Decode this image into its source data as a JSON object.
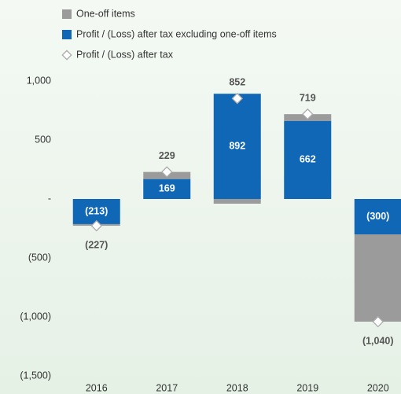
{
  "chart_data": {
    "type": "bar",
    "stacked": true,
    "categories": [
      "2016",
      "2017",
      "2018",
      "2019",
      "2020"
    ],
    "series": [
      {
        "name": "One-off items",
        "color": "#9b9b9b",
        "values": [
          -14,
          60,
          -40,
          57,
          -740
        ]
      },
      {
        "name": "Profit / (Loss) after tax excluding one-off items",
        "color": "#0f67b6",
        "values": [
          -213,
          169,
          892,
          662,
          -300
        ],
        "value_labels": [
          "(213)",
          "169",
          "892",
          "662",
          "(300)"
        ]
      },
      {
        "name": "Profit / (Loss) after tax",
        "type": "marker",
        "color": "#ffffff",
        "values": [
          -227,
          229,
          852,
          719,
          -1040
        ],
        "value_labels": [
          "(227)",
          "229",
          "852",
          "719",
          "(1,040)"
        ]
      }
    ],
    "ylim": [
      -1500,
      1000
    ],
    "yticks": [
      {
        "value": -1500,
        "label": "(1,500)"
      },
      {
        "value": -1000,
        "label": "(1,000)"
      },
      {
        "value": -500,
        "label": "(500)"
      },
      {
        "value": 0,
        "label": "-"
      },
      500,
      {
        "value": 1000,
        "label": "1,000"
      }
    ]
  }
}
